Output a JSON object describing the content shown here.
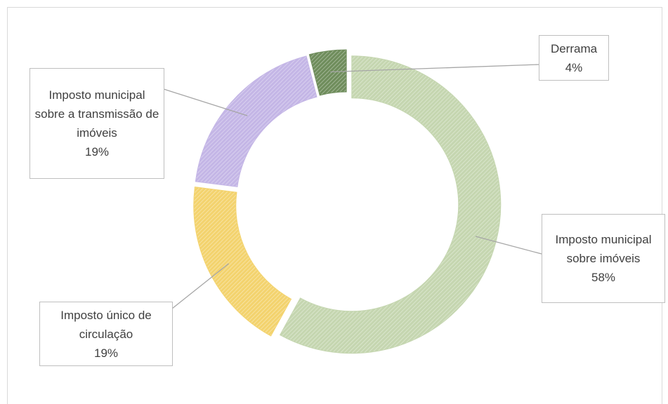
{
  "chart_data": {
    "type": "donut",
    "categories": [
      "Imposto municipal sobre imóveis",
      "Imposto único de circulação",
      "Imposto municipal sobre a transmissão de imóveis",
      "Derrama"
    ],
    "values": [
      58,
      19,
      19,
      4
    ],
    "value_labels": [
      "58%",
      "19%",
      "19%",
      "4%"
    ],
    "colors": [
      "#c5d6b0",
      "#f3d36e",
      "#c4b6e6",
      "#6f8d5c"
    ]
  }
}
